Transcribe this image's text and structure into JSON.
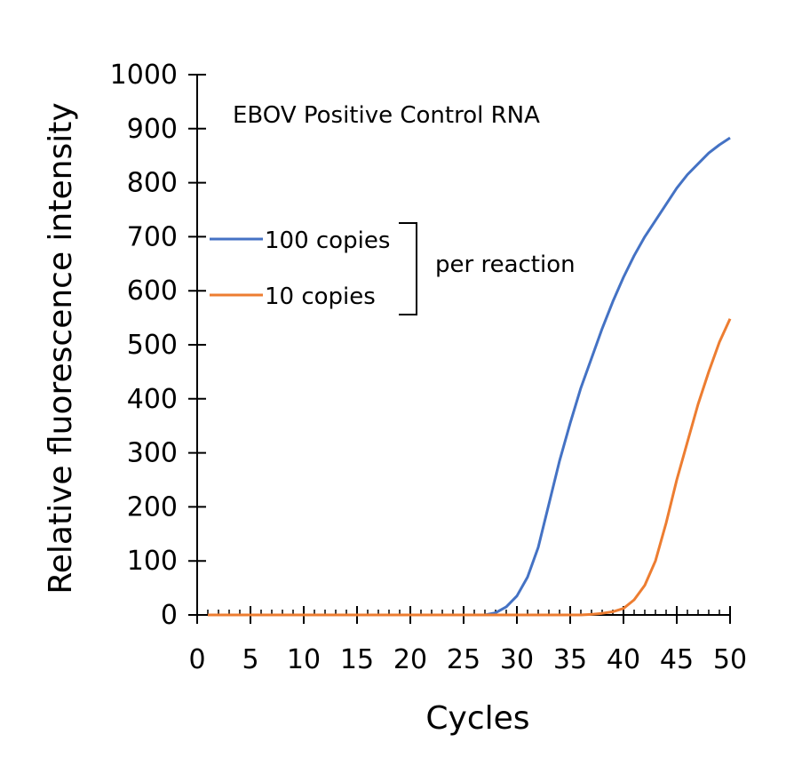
{
  "chart_data": {
    "type": "line",
    "title": "",
    "annotation": "EBOV Positive Control RNA",
    "xlabel": "Cycles",
    "ylabel": "Relative fluorescence intensity",
    "xlim": [
      0,
      50
    ],
    "ylim": [
      0,
      1000
    ],
    "x_ticks": [
      0,
      5,
      10,
      15,
      20,
      25,
      30,
      35,
      40,
      45,
      50
    ],
    "y_ticks": [
      0,
      100,
      200,
      300,
      400,
      500,
      600,
      700,
      800,
      900,
      1000
    ],
    "grid": false,
    "legend_position": "left",
    "legend_group_label": "per reaction",
    "series": [
      {
        "name": "100 copies",
        "color": "#4472C4",
        "x": [
          1,
          2,
          3,
          4,
          5,
          6,
          7,
          8,
          9,
          10,
          11,
          12,
          13,
          14,
          15,
          16,
          17,
          18,
          19,
          20,
          21,
          22,
          23,
          24,
          25,
          26,
          27,
          28,
          29,
          30,
          31,
          32,
          33,
          34,
          35,
          36,
          37,
          38,
          39,
          40,
          41,
          42,
          43,
          44,
          45,
          46,
          47,
          48,
          49,
          50
        ],
        "y": [
          0,
          0,
          0,
          0,
          0,
          0,
          0,
          0,
          0,
          0,
          0,
          0,
          0,
          0,
          0,
          0,
          0,
          0,
          0,
          0,
          0,
          0,
          0,
          0,
          0,
          0,
          0,
          4,
          15,
          35,
          70,
          125,
          205,
          285,
          355,
          420,
          475,
          530,
          580,
          625,
          665,
          700,
          730,
          760,
          790,
          815,
          835,
          855,
          870,
          883
        ]
      },
      {
        "name": "10 copies",
        "color": "#ED7D31",
        "x": [
          1,
          2,
          3,
          4,
          5,
          6,
          7,
          8,
          9,
          10,
          11,
          12,
          13,
          14,
          15,
          16,
          17,
          18,
          19,
          20,
          21,
          22,
          23,
          24,
          25,
          26,
          27,
          28,
          29,
          30,
          31,
          32,
          33,
          34,
          35,
          36,
          37,
          38,
          39,
          40,
          41,
          42,
          43,
          44,
          45,
          46,
          47,
          48,
          49,
          50
        ],
        "y": [
          0,
          0,
          0,
          0,
          0,
          0,
          0,
          0,
          0,
          0,
          0,
          0,
          0,
          0,
          0,
          0,
          0,
          0,
          0,
          0,
          0,
          0,
          0,
          0,
          0,
          0,
          0,
          0,
          0,
          0,
          0,
          0,
          0,
          0,
          0,
          0,
          1,
          3,
          6,
          12,
          28,
          55,
          100,
          170,
          250,
          320,
          390,
          450,
          505,
          548
        ]
      }
    ]
  }
}
